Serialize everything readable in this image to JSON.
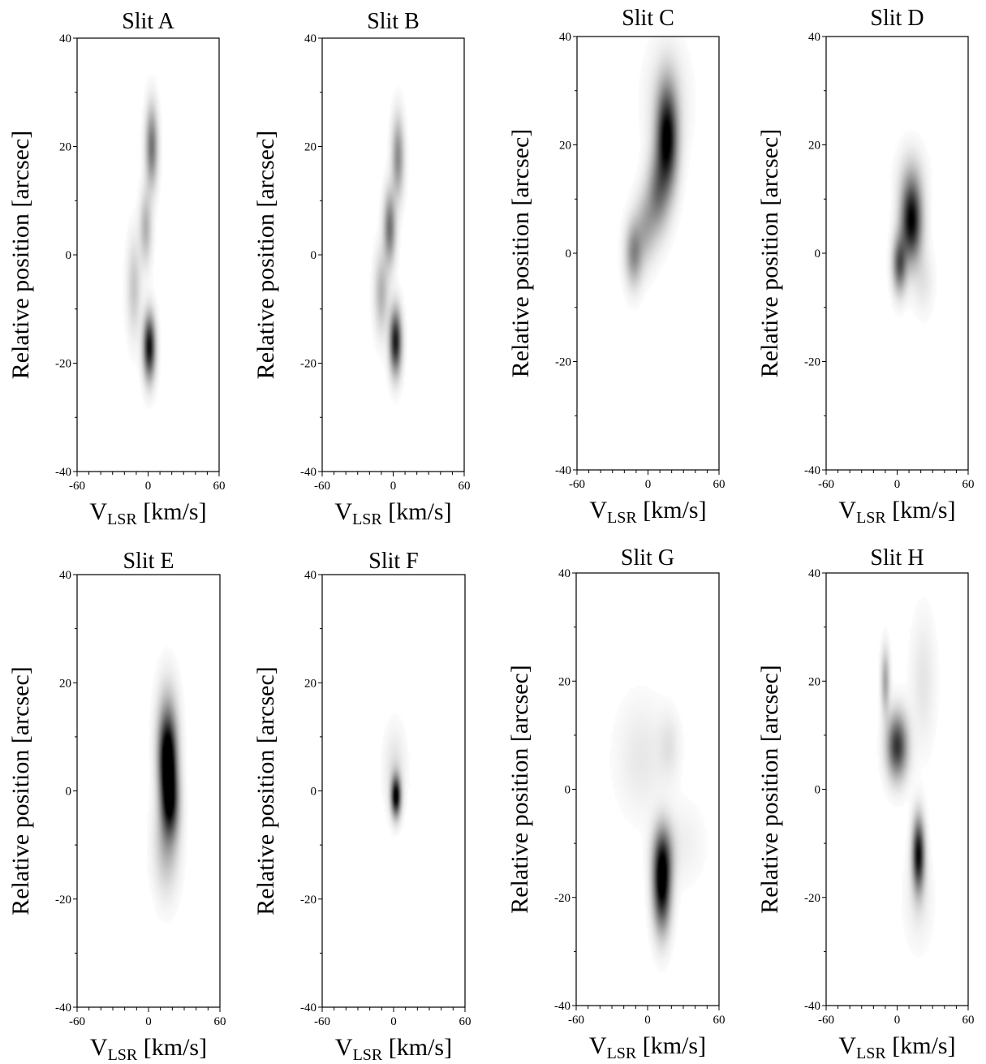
{
  "figure": {
    "panel_titles": [
      "Slit A",
      "Slit B",
      "Slit C",
      "Slit D",
      "Slit E",
      "Slit F",
      "Slit G",
      "Slit H"
    ],
    "xlabel_main": "V",
    "xlabel_sub": "LSR",
    "xlabel_unit": "[km/s]",
    "ylabel": "Relative position [arcsec]"
  },
  "chart_data": [
    {
      "type": "heatmap",
      "title": "Slit A",
      "xlabel": "V_LSR [km/s]",
      "ylabel": "Relative position [arcsec]",
      "xlim": [
        -60,
        60
      ],
      "ylim": [
        -40,
        40
      ],
      "xticks": [
        "-60",
        "0",
        "60"
      ],
      "yticks": [
        "-40",
        "-20",
        "0",
        "20",
        "40"
      ],
      "colormap": "gray_r",
      "blobs": [
        {
          "v": 3,
          "pos": 20,
          "v_sigma": 3.5,
          "pos_sigma": 5,
          "intensity": 0.55
        },
        {
          "v": -2,
          "pos": 5,
          "v_sigma": 3.5,
          "pos_sigma": 4.5,
          "intensity": 0.3
        },
        {
          "v": -12,
          "pos": -6,
          "v_sigma": 4,
          "pos_sigma": 6,
          "intensity": 0.22
        },
        {
          "v": 1,
          "pos": -17,
          "v_sigma": 3.5,
          "pos_sigma": 4,
          "intensity": 0.95
        }
      ]
    },
    {
      "type": "heatmap",
      "title": "Slit B",
      "xlabel": "V_LSR [km/s]",
      "ylabel": "Relative position [arcsec]",
      "xlim": [
        -60,
        60
      ],
      "ylim": [
        -40,
        40
      ],
      "xticks": [
        "-60",
        "0",
        "60"
      ],
      "yticks": [
        "-40",
        "-20",
        "0",
        "20",
        "40"
      ],
      "colormap": "gray_r",
      "blobs": [
        {
          "v": 4,
          "pos": 18,
          "v_sigma": 3.5,
          "pos_sigma": 5,
          "intensity": 0.45
        },
        {
          "v": -3,
          "pos": 5,
          "v_sigma": 3.5,
          "pos_sigma": 4.5,
          "intensity": 0.55
        },
        {
          "v": -10,
          "pos": -7,
          "v_sigma": 4,
          "pos_sigma": 5,
          "intensity": 0.3
        },
        {
          "v": 2,
          "pos": -16,
          "v_sigma": 3.5,
          "pos_sigma": 4,
          "intensity": 0.9
        }
      ]
    },
    {
      "type": "heatmap",
      "title": "Slit C",
      "xlabel": "V_LSR [km/s]",
      "ylabel": "Relative position [arcsec]",
      "xlim": [
        -60,
        60
      ],
      "ylim": [
        -40,
        40
      ],
      "xticks": [
        "-60",
        "0",
        "60"
      ],
      "yticks": [
        "-40",
        "-20",
        "0",
        "20",
        "40"
      ],
      "colormap": "gray_r",
      "blobs": [
        {
          "v": 16,
          "pos": 21,
          "v_sigma": 6,
          "pos_sigma": 6.5,
          "intensity": 1.0
        },
        {
          "v": 8,
          "pos": 11,
          "v_sigma": 6,
          "pos_sigma": 5,
          "intensity": 0.45
        },
        {
          "v": -2,
          "pos": 5,
          "v_sigma": 6,
          "pos_sigma": 4.5,
          "intensity": 0.3
        },
        {
          "v": -12,
          "pos": 0,
          "v_sigma": 5,
          "pos_sigma": 4,
          "intensity": 0.45
        },
        {
          "v": 16,
          "pos": 28,
          "v_sigma": 12,
          "pos_sigma": 7,
          "intensity": 0.12
        }
      ]
    },
    {
      "type": "heatmap",
      "title": "Slit D",
      "xlabel": "V_LSR [km/s]",
      "ylabel": "Relative position [arcsec]",
      "xlim": [
        -60,
        60
      ],
      "ylim": [
        -40,
        40
      ],
      "xticks": [
        "-60",
        "0",
        "60"
      ],
      "yticks": [
        "-40",
        "-20",
        "0",
        "20",
        "40"
      ],
      "colormap": "gray_r",
      "blobs": [
        {
          "v": 12,
          "pos": 6,
          "v_sigma": 6,
          "pos_sigma": 5,
          "intensity": 1.0
        },
        {
          "v": 2,
          "pos": -2,
          "v_sigma": 4,
          "pos_sigma": 3.5,
          "intensity": 0.65
        },
        {
          "v": 22,
          "pos": -5,
          "v_sigma": 6,
          "pos_sigma": 4,
          "intensity": 0.1
        },
        {
          "v": 12,
          "pos": 14,
          "v_sigma": 8,
          "pos_sigma": 4,
          "intensity": 0.12
        }
      ]
    },
    {
      "type": "heatmap",
      "title": "Slit E",
      "xlabel": "V_LSR [km/s]",
      "ylabel": "Relative position [arcsec]",
      "xlim": [
        -60,
        60
      ],
      "ylim": [
        -40,
        40
      ],
      "xticks": [
        "-60",
        "0",
        "60"
      ],
      "yticks": [
        "-40",
        "-20",
        "0",
        "20",
        "40"
      ],
      "colormap": "gray_r",
      "blobs": [
        {
          "v": 16,
          "pos": 6,
          "v_sigma": 5,
          "pos_sigma": 5,
          "intensity": 1.0
        },
        {
          "v": 18,
          "pos": -2,
          "v_sigma": 5,
          "pos_sigma": 4.5,
          "intensity": 0.85
        },
        {
          "v": 16,
          "pos": 12,
          "v_sigma": 6,
          "pos_sigma": 6,
          "intensity": 0.3
        },
        {
          "v": 15,
          "pos": -10,
          "v_sigma": 7,
          "pos_sigma": 6,
          "intensity": 0.28
        }
      ]
    },
    {
      "type": "heatmap",
      "title": "Slit F",
      "xlabel": "V_LSR [km/s]",
      "ylabel": "Relative position [arcsec]",
      "xlim": [
        -60,
        60
      ],
      "ylim": [
        -40,
        40
      ],
      "xticks": [
        "-60",
        "0",
        "60"
      ],
      "yticks": [
        "-40",
        "-20",
        "0",
        "20",
        "40"
      ],
      "colormap": "gray_r",
      "blobs": [
        {
          "v": 2,
          "pos": -1,
          "v_sigma": 2.8,
          "pos_sigma": 2.5,
          "intensity": 1.0
        },
        {
          "v": 1,
          "pos": 4,
          "v_sigma": 6,
          "pos_sigma": 5,
          "intensity": 0.12
        }
      ]
    },
    {
      "type": "heatmap",
      "title": "Slit G",
      "xlabel": "V_LSR [km/s]",
      "ylabel": "Relative position [arcsec]",
      "xlim": [
        -60,
        60
      ],
      "ylim": [
        -40,
        40
      ],
      "xticks": [
        "-60",
        "0",
        "60"
      ],
      "yticks": [
        "-40",
        "-20",
        "0",
        "20",
        "40"
      ],
      "colormap": "gray_r",
      "blobs": [
        {
          "v": 12,
          "pos": -18,
          "v_sigma": 5,
          "pos_sigma": 5.5,
          "intensity": 1.0
        },
        {
          "v": 13,
          "pos": -12,
          "v_sigma": 6,
          "pos_sigma": 4,
          "intensity": 0.4
        },
        {
          "v": -5,
          "pos": 6,
          "v_sigma": 14,
          "pos_sigma": 7,
          "intensity": 0.09
        },
        {
          "v": 18,
          "pos": 8,
          "v_sigma": 6,
          "pos_sigma": 4,
          "intensity": 0.1
        },
        {
          "v": 30,
          "pos": -10,
          "v_sigma": 12,
          "pos_sigma": 5,
          "intensity": 0.06
        }
      ]
    },
    {
      "type": "heatmap",
      "title": "Slit H",
      "xlabel": "V_LSR [km/s]",
      "ylabel": "Relative position [arcsec]",
      "xlim": [
        -60,
        60
      ],
      "ylim": [
        -40,
        40
      ],
      "xticks": [
        "-60",
        "0",
        "60"
      ],
      "yticks": [
        "-40",
        "-20",
        "0",
        "20",
        "40"
      ],
      "colormap": "gray_r",
      "blobs": [
        {
          "v": 0,
          "pos": 8,
          "v_sigma": 6,
          "pos_sigma": 4,
          "intensity": 0.8
        },
        {
          "v": -10,
          "pos": 20,
          "v_sigma": 2.5,
          "pos_sigma": 4,
          "intensity": 0.35
        },
        {
          "v": 18,
          "pos": -12,
          "v_sigma": 3.5,
          "pos_sigma": 4.5,
          "intensity": 0.95
        },
        {
          "v": 22,
          "pos": 20,
          "v_sigma": 7,
          "pos_sigma": 8,
          "intensity": 0.1
        },
        {
          "v": 18,
          "pos": -20,
          "v_sigma": 8,
          "pos_sigma": 6,
          "intensity": 0.08
        }
      ]
    }
  ]
}
